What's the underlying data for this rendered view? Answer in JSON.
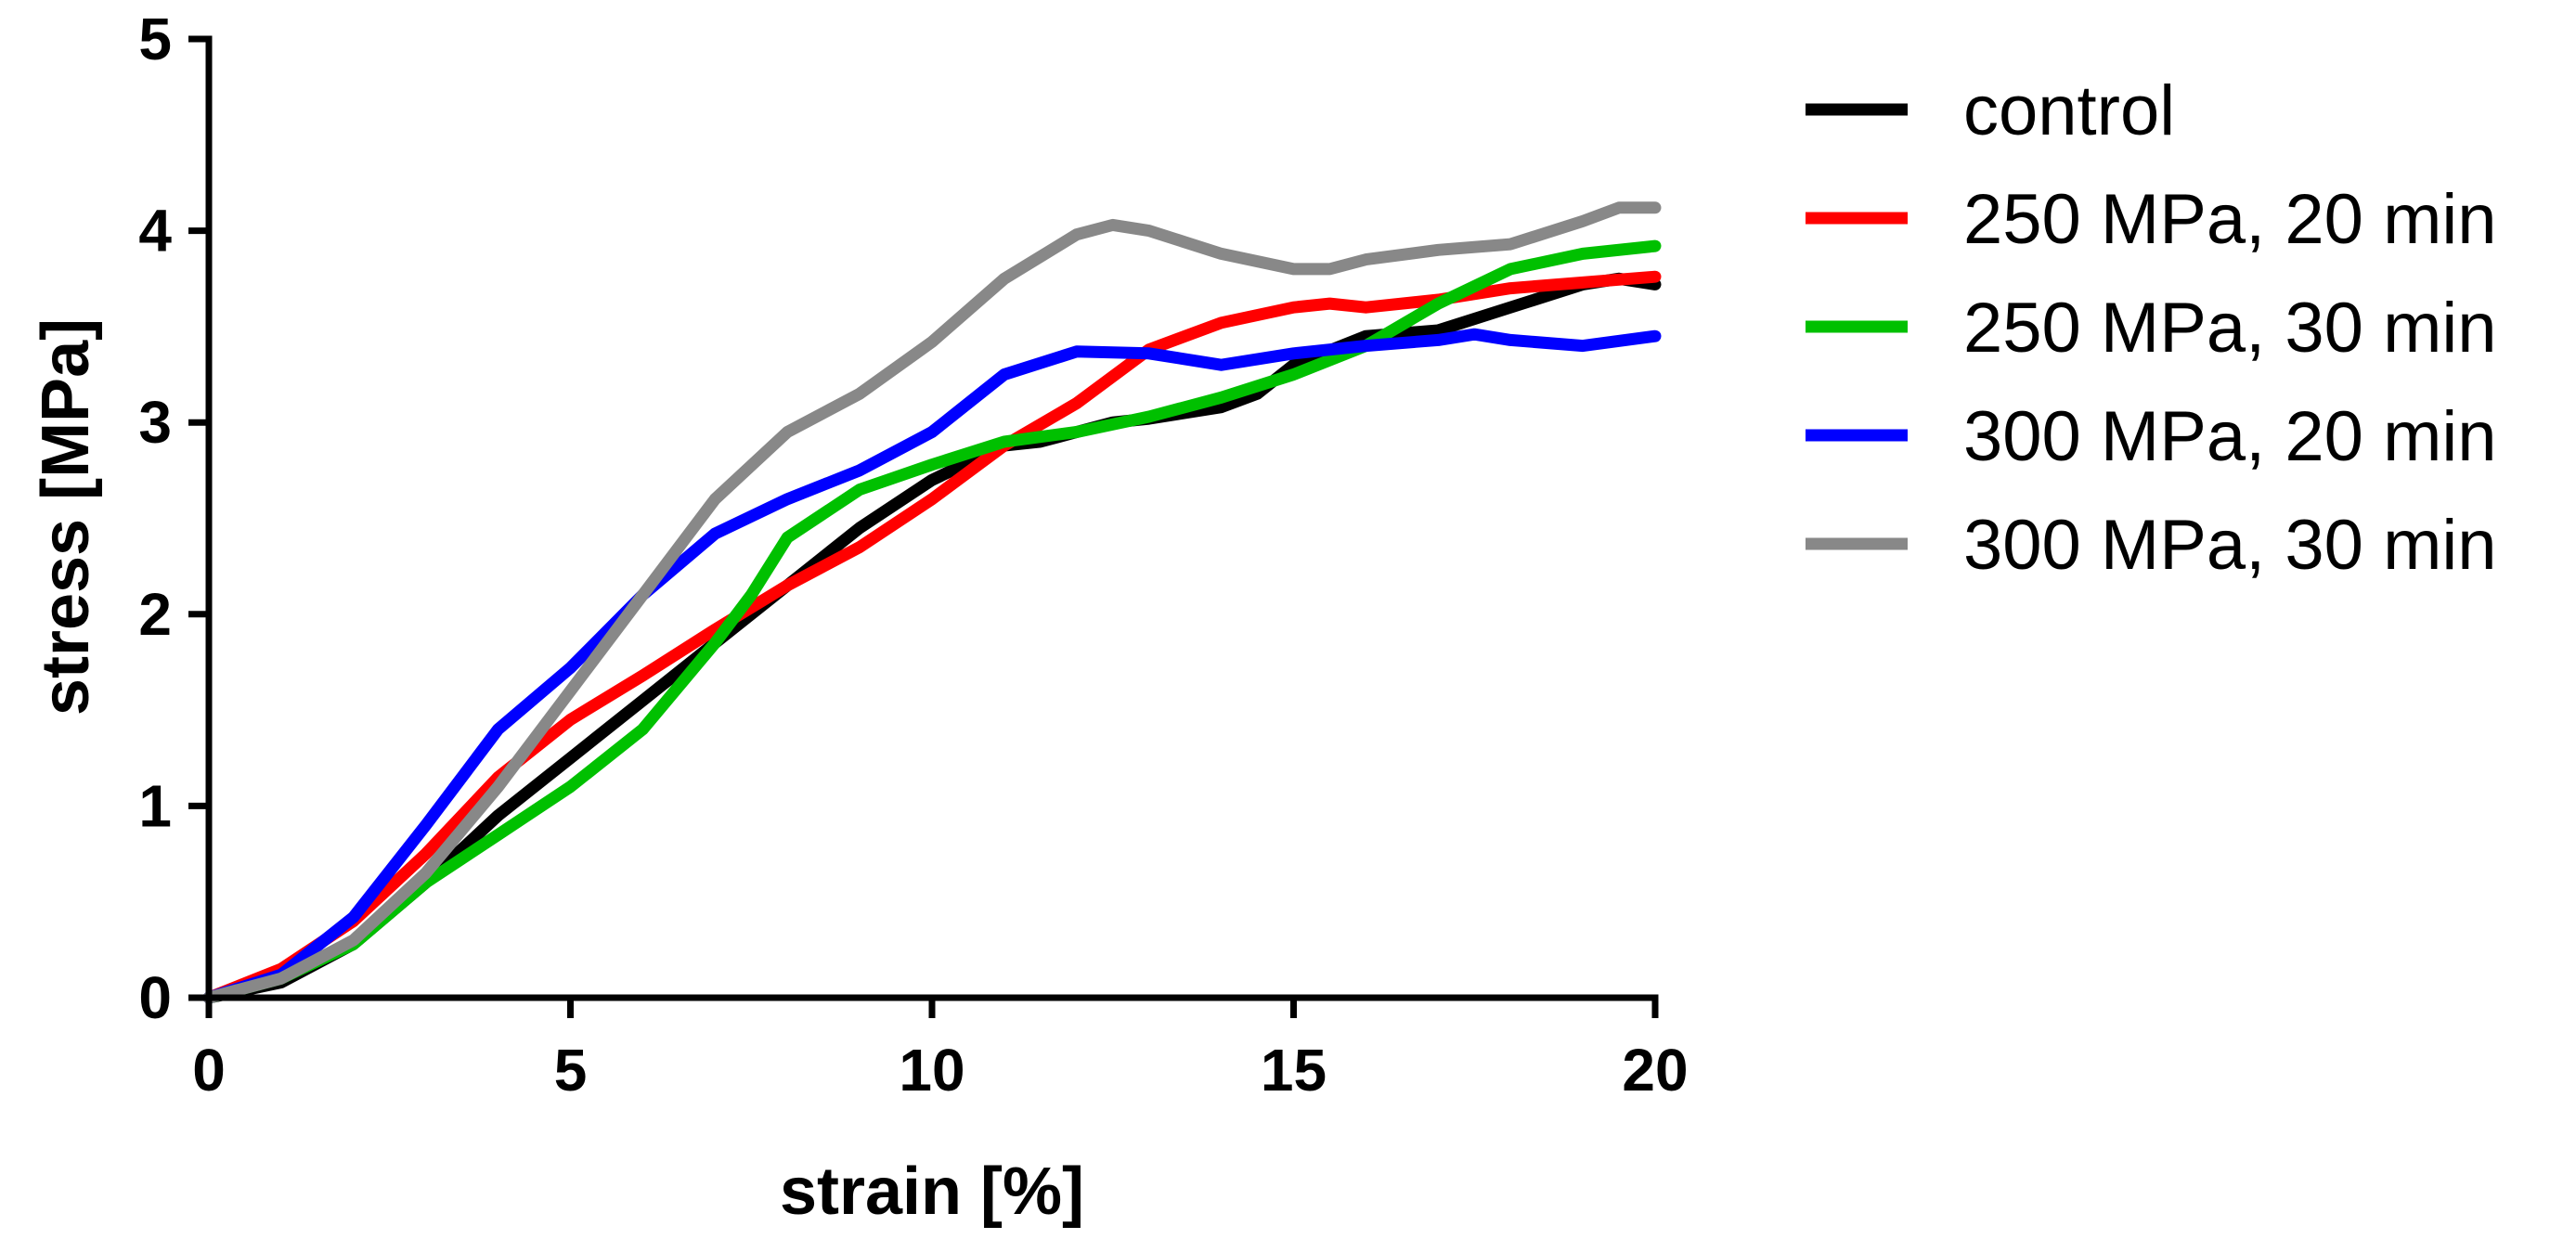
{
  "chart_data": {
    "type": "line",
    "title": "",
    "xlabel": "strain [%]",
    "ylabel": "stress [MPa]",
    "xlim": [
      0,
      20
    ],
    "ylim": [
      0,
      5
    ],
    "xticks": [
      "0",
      "5",
      "10",
      "15",
      "20"
    ],
    "yticks": [
      "0",
      "1",
      "2",
      "3",
      "4",
      "5"
    ],
    "grid": false,
    "legend_position": "right",
    "series": [
      {
        "name": "control",
        "color": "#000000",
        "x": [
          0,
          1,
          2,
          3,
          4,
          5,
          6,
          7,
          8,
          9,
          10,
          11,
          11.5,
          12,
          12.5,
          13,
          14,
          14.5,
          15,
          16,
          17,
          18,
          19,
          19.5,
          20
        ],
        "y": [
          0,
          0.08,
          0.28,
          0.6,
          0.95,
          1.25,
          1.55,
          1.85,
          2.15,
          2.45,
          2.7,
          2.88,
          2.9,
          2.95,
          3.0,
          3.02,
          3.08,
          3.15,
          3.3,
          3.45,
          3.48,
          3.6,
          3.72,
          3.75,
          3.72
        ]
      },
      {
        "name": "250 MPa, 20 min",
        "color": "#ff0000",
        "x": [
          0,
          1,
          2,
          3,
          4,
          5,
          6,
          7,
          8,
          9,
          10,
          11,
          12,
          13,
          14,
          15,
          15.5,
          16,
          17,
          18,
          19,
          20
        ],
        "y": [
          0,
          0.15,
          0.4,
          0.75,
          1.15,
          1.45,
          1.68,
          1.92,
          2.15,
          2.35,
          2.6,
          2.88,
          3.1,
          3.38,
          3.52,
          3.6,
          3.62,
          3.6,
          3.64,
          3.7,
          3.73,
          3.76
        ]
      },
      {
        "name": "250 MPa, 30 min",
        "color": "#00c000",
        "x": [
          0,
          1,
          2,
          3,
          4,
          5,
          6,
          7,
          7.5,
          8,
          9,
          10,
          11,
          12,
          13,
          14,
          15,
          16,
          17,
          18,
          19,
          20
        ],
        "y": [
          0,
          0.1,
          0.28,
          0.6,
          0.85,
          1.1,
          1.4,
          1.85,
          2.1,
          2.4,
          2.65,
          2.78,
          2.9,
          2.95,
          3.03,
          3.13,
          3.25,
          3.4,
          3.62,
          3.8,
          3.88,
          3.92
        ]
      },
      {
        "name": "300 MPa, 20 min",
        "color": "#0000ff",
        "x": [
          0,
          1,
          2,
          3,
          4,
          5,
          6,
          7,
          8,
          9,
          10,
          11,
          12,
          13,
          14,
          15,
          16,
          17,
          17.5,
          18,
          19,
          20
        ],
        "y": [
          0,
          0.12,
          0.42,
          0.9,
          1.4,
          1.72,
          2.1,
          2.42,
          2.6,
          2.75,
          2.95,
          3.25,
          3.37,
          3.36,
          3.3,
          3.36,
          3.4,
          3.43,
          3.46,
          3.43,
          3.4,
          3.45
        ]
      },
      {
        "name": "300 MPa, 30 min",
        "color": "#888888",
        "x": [
          0,
          1,
          2,
          3,
          4,
          5,
          6,
          7,
          8,
          9,
          10,
          11,
          12,
          12.5,
          13,
          14,
          15,
          15.5,
          16,
          17,
          18,
          19,
          19.5,
          20
        ],
        "y": [
          0,
          0.1,
          0.3,
          0.65,
          1.1,
          1.6,
          2.1,
          2.6,
          2.95,
          3.15,
          3.42,
          3.75,
          3.98,
          4.03,
          4.0,
          3.88,
          3.8,
          3.8,
          3.85,
          3.9,
          3.93,
          4.05,
          4.12,
          4.12
        ]
      }
    ]
  }
}
